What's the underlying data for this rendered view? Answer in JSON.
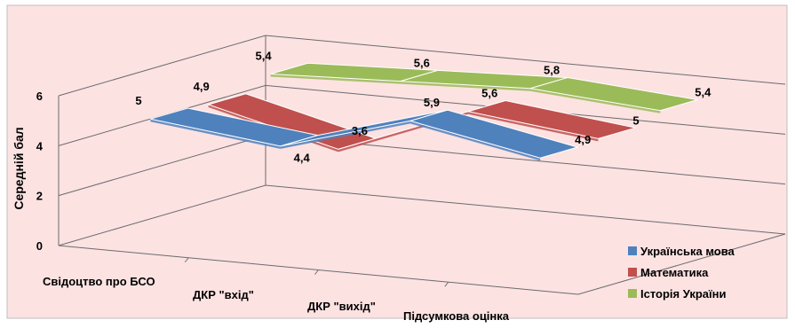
{
  "chart_data": {
    "type": "line",
    "view": "3d",
    "categories": [
      "Свідоцтво про БСО",
      "ДКР \"вхід\"",
      "ДКР \"вихід\"",
      "Підсумкова оцінка"
    ],
    "series": [
      {
        "name": "Українська мова",
        "values": [
          5,
          4.4,
          5.9,
          4.9
        ],
        "labels": [
          "5",
          "4,4",
          "5,9",
          "4,9"
        ],
        "color": "#4f81bd"
      },
      {
        "name": "Математика",
        "values": [
          4.9,
          3.6,
          5.6,
          5
        ],
        "labels": [
          "4,9",
          "3,6",
          "5,6",
          "5"
        ],
        "color": "#c0504d"
      },
      {
        "name": "Історія України",
        "values": [
          5.4,
          5.6,
          5.8,
          5.4
        ],
        "labels": [
          "5,4",
          "5,6",
          "5,8",
          "5,4"
        ],
        "color": "#9bbb59"
      }
    ],
    "ylabel": "Середній бал",
    "ylim": [
      0,
      6
    ],
    "yticks": [
      "0",
      "2",
      "4",
      "6"
    ],
    "grid": true,
    "legend_position": "bottom-right",
    "background": "#fde2e2"
  }
}
